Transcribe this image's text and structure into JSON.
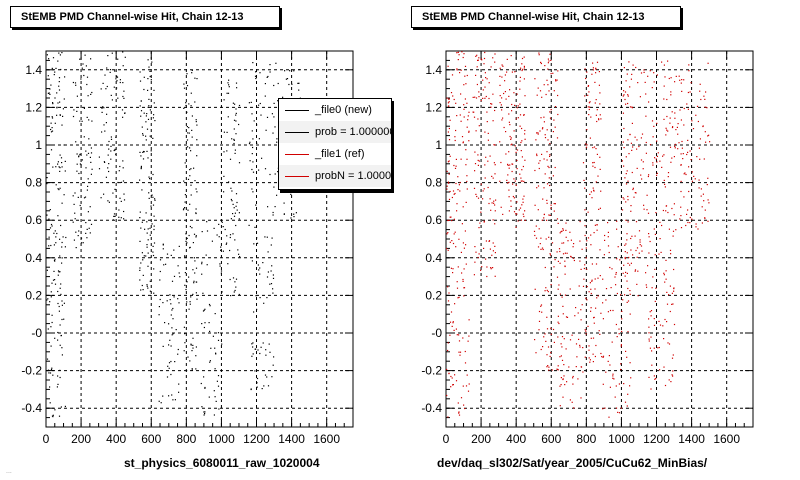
{
  "panels": [
    {
      "title": "StEMB PMD Channel-wise Hit, Chain 12-13",
      "xcaption": "st_physics_6080011_raw_1020004",
      "marker_color": "#000000"
    },
    {
      "title": "StEMB PMD Channel-wise Hit, Chain 12-13",
      "xcaption": "dev/daq_sl302/Sat/year_2005/CuCu62_MinBias/",
      "marker_color": "#d00000"
    }
  ],
  "legend": {
    "entries": [
      {
        "label": "_file0 (new)",
        "color": "#000000"
      },
      {
        "label": "prob = 1.000000",
        "color": "#000000"
      },
      {
        "label": "_file1 (ref)",
        "color": "#d00000"
      },
      {
        "label": "probN = 1.000000",
        "color": "#d00000"
      }
    ]
  },
  "footnote": "...",
  "chart_data": [
    {
      "type": "scatter",
      "title": "StEMB PMD Channel-wise Hit, Chain 12-13",
      "xlabel": "st_physics_6080011_raw_1020004",
      "ylabel": "",
      "xlim": [
        0,
        1750
      ],
      "ylim": [
        -0.5,
        1.5
      ],
      "xticks": [
        0,
        200,
        400,
        600,
        800,
        1000,
        1200,
        1400,
        1600
      ],
      "yticks": [
        "-0.4",
        "-0.2",
        "-0",
        "0.2",
        "0.4",
        "0.6",
        "0.8",
        "1",
        "1.2",
        "1.4"
      ],
      "grid": true,
      "series": [
        {
          "name": "_file0 (new)",
          "color": "#000000"
        }
      ],
      "clusters": [
        {
          "x": [
            0,
            110
          ],
          "y": [
            -0.45,
            1.5
          ],
          "n": 160
        },
        {
          "x": [
            150,
            260
          ],
          "y": [
            0.45,
            1.5
          ],
          "n": 80
        },
        {
          "x": [
            300,
            450
          ],
          "y": [
            0.6,
            1.5
          ],
          "n": 90
        },
        {
          "x": [
            530,
            620
          ],
          "y": [
            0.2,
            1.5
          ],
          "n": 110
        },
        {
          "x": [
            640,
            760
          ],
          "y": [
            -0.4,
            0.5
          ],
          "n": 60
        },
        {
          "x": [
            780,
            860
          ],
          "y": [
            -0.2,
            1.45
          ],
          "n": 110
        },
        {
          "x": [
            880,
            1000
          ],
          "y": [
            -0.45,
            0.6
          ],
          "n": 60
        },
        {
          "x": [
            1000,
            1100
          ],
          "y": [
            0.2,
            1.45
          ],
          "n": 80
        },
        {
          "x": [
            1150,
            1300
          ],
          "y": [
            -0.3,
            1.45
          ],
          "n": 110
        },
        {
          "x": [
            1300,
            1450
          ],
          "y": [
            0.6,
            1.45
          ],
          "n": 60
        }
      ]
    },
    {
      "type": "scatter",
      "title": "StEMB PMD Channel-wise Hit, Chain 12-13",
      "xlabel": "dev/daq_sl302/Sat/year_2005/CuCu62_MinBias/",
      "ylabel": "",
      "xlim": [
        0,
        1750
      ],
      "ylim": [
        -0.5,
        1.5
      ],
      "xticks": [
        0,
        200,
        400,
        600,
        800,
        1000,
        1200,
        1400,
        1600
      ],
      "yticks": [
        "-0.4",
        "-0.2",
        "-0",
        "0.2",
        "0.4",
        "0.6",
        "0.8",
        "1",
        "1.2",
        "1.4"
      ],
      "grid": true,
      "series": [
        {
          "name": "_file1 (ref)",
          "color": "#d00000"
        }
      ],
      "clusters": [
        {
          "x": [
            0,
            130
          ],
          "y": [
            -0.45,
            1.5
          ],
          "n": 180
        },
        {
          "x": [
            150,
            280
          ],
          "y": [
            0.3,
            1.5
          ],
          "n": 120
        },
        {
          "x": [
            300,
            450
          ],
          "y": [
            0.55,
            1.5
          ],
          "n": 130
        },
        {
          "x": [
            500,
            640
          ],
          "y": [
            -0.2,
            1.5
          ],
          "n": 160
        },
        {
          "x": [
            640,
            780
          ],
          "y": [
            -0.4,
            0.6
          ],
          "n": 90
        },
        {
          "x": [
            780,
            880
          ],
          "y": [
            -0.2,
            1.45
          ],
          "n": 130
        },
        {
          "x": [
            880,
            1050
          ],
          "y": [
            -0.45,
            0.6
          ],
          "n": 90
        },
        {
          "x": [
            1000,
            1150
          ],
          "y": [
            0.2,
            1.45
          ],
          "n": 120
        },
        {
          "x": [
            1150,
            1300
          ],
          "y": [
            -0.3,
            1.45
          ],
          "n": 150
        },
        {
          "x": [
            1300,
            1500
          ],
          "y": [
            0.55,
            1.45
          ],
          "n": 110
        }
      ]
    }
  ]
}
